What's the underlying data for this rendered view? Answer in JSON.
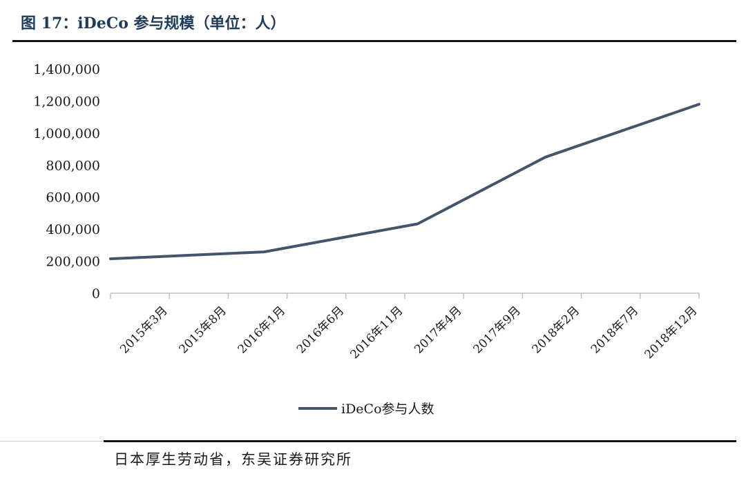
{
  "header": {
    "title": "图 17：iDeCo 参与规模（单位：人）"
  },
  "footer": {
    "source": "日本厚生劳动省，东吴证券研究所"
  },
  "colors": {
    "series_line": "#44546a",
    "title": "#1f3b5c"
  },
  "chart_data": {
    "type": "line",
    "title": "",
    "xlabel": "",
    "ylabel": "",
    "ylim": [
      0,
      1400000
    ],
    "y_ticks": [
      "0",
      "200,000",
      "400,000",
      "600,000",
      "800,000",
      "1,000,000",
      "1,200,000",
      "1,400,000"
    ],
    "categories": [
      "2015年3月",
      "2015年8月",
      "2016年1月",
      "2016年6月",
      "2016年11月",
      "2017年4月",
      "2017年9月",
      "2018年2月",
      "2018年7月",
      "2018年12月"
    ],
    "series": [
      {
        "name": "iDeCo参与人数",
        "color": "#44546a",
        "x": [
          "2015-03",
          "2016-03",
          "2017-03",
          "2018-01",
          "2019-01"
        ],
        "values": [
          215000,
          258000,
          433000,
          850000,
          1180000
        ]
      }
    ],
    "grid": false,
    "legend": "bottom"
  }
}
